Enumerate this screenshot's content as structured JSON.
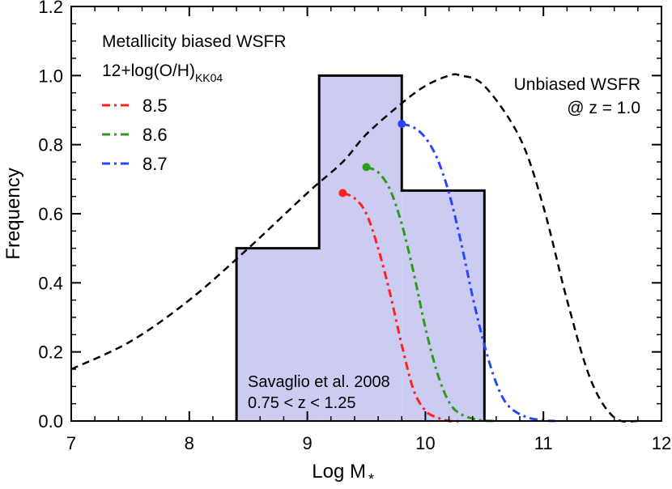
{
  "chart_data": {
    "type": "line",
    "title": "",
    "xlabel": "Log M",
    "xlabel_subscript": "*",
    "ylabel": "Frequency",
    "xlim": [
      7,
      12
    ],
    "ylim": [
      0,
      1.2
    ],
    "x_ticks": [
      "7",
      "8",
      "9",
      "10",
      "11",
      "12"
    ],
    "y_ticks": [
      "0.0",
      "0.2",
      "0.4",
      "0.6",
      "0.8",
      "1.0",
      "1.2"
    ],
    "histogram": {
      "name": "Savaglio et al. 2008",
      "label_line1": "Savaglio et al. 2008",
      "label_line2": "0.75 < z < 1.25",
      "bin_edges": [
        8.4,
        9.1,
        9.8,
        10.5
      ],
      "values": [
        0.5,
        1.0,
        0.667
      ],
      "color": "#ccccf2"
    },
    "unbiased_curve": {
      "name": "Unbiased WSFR @ z = 1.0",
      "label_line1": "Unbiased WSFR",
      "label_line2": "@ z = 1.0",
      "color": "#000000",
      "x": [
        7.0,
        7.5,
        8.0,
        8.5,
        9.0,
        9.3,
        9.5,
        9.8,
        10.0,
        10.2,
        10.3,
        10.5,
        10.8,
        11.0,
        11.2,
        11.4,
        11.6,
        11.8
      ],
      "y": [
        0.15,
        0.23,
        0.35,
        0.5,
        0.66,
        0.75,
        0.83,
        0.92,
        0.97,
        1.0,
        1.0,
        0.97,
        0.82,
        0.62,
        0.35,
        0.12,
        0.01,
        0.0
      ]
    },
    "legend": {
      "title": "Metallicity biased WSFR",
      "subtitle_main": "12+log(O/H)",
      "subtitle_sub": "KK04"
    },
    "series": [
      {
        "name": "8.5",
        "color": "#ff2020",
        "x": [
          9.3,
          9.4,
          9.5,
          9.6,
          9.7,
          9.8,
          9.9,
          10.0,
          10.1,
          10.2,
          10.3
        ],
        "y": [
          0.66,
          0.645,
          0.6,
          0.5,
          0.37,
          0.22,
          0.09,
          0.03,
          0.01,
          0.0,
          0.0
        ]
      },
      {
        "name": "8.6",
        "color": "#2c9a1a",
        "x": [
          9.5,
          9.6,
          9.7,
          9.8,
          9.9,
          10.0,
          10.1,
          10.2,
          10.3,
          10.45,
          10.6
        ],
        "y": [
          0.735,
          0.72,
          0.67,
          0.57,
          0.43,
          0.27,
          0.14,
          0.055,
          0.02,
          0.003,
          0.0
        ]
      },
      {
        "name": "8.7",
        "color": "#2846ff",
        "x": [
          9.8,
          9.9,
          10.0,
          10.1,
          10.2,
          10.3,
          10.4,
          10.5,
          10.6,
          10.7,
          10.85,
          11.0,
          11.1
        ],
        "y": [
          0.86,
          0.85,
          0.82,
          0.76,
          0.66,
          0.52,
          0.36,
          0.22,
          0.11,
          0.045,
          0.012,
          0.002,
          0.0
        ]
      }
    ]
  }
}
